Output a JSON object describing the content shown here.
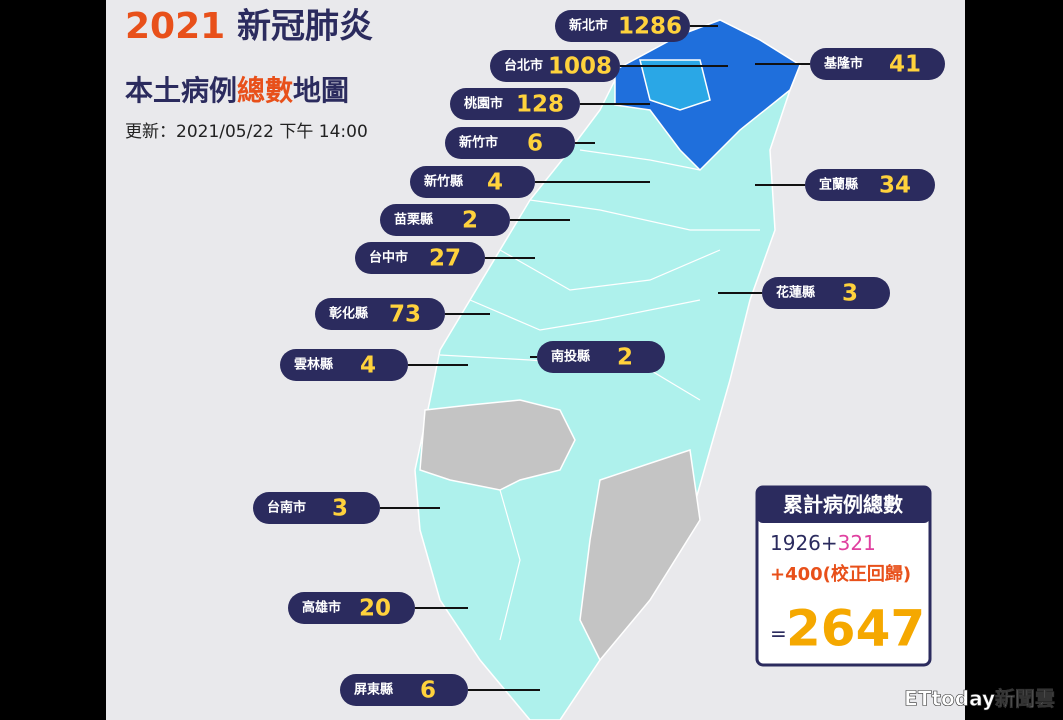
{
  "header": {
    "title_year": "2021",
    "title_rest": "新冠肺炎",
    "subtitle_a": "本土病例",
    "subtitle_b": "總數",
    "subtitle_c": "地圖",
    "updated": "更新：2021/05/22 下午 14:00"
  },
  "regions": [
    {
      "name": "新北市",
      "cases": 1286
    },
    {
      "name": "台北市",
      "cases": 1008
    },
    {
      "name": "基隆市",
      "cases": 41
    },
    {
      "name": "桃園市",
      "cases": 128
    },
    {
      "name": "新竹市",
      "cases": 6
    },
    {
      "name": "新竹縣",
      "cases": 4
    },
    {
      "name": "宜蘭縣",
      "cases": 34
    },
    {
      "name": "苗栗縣",
      "cases": 2
    },
    {
      "name": "台中市",
      "cases": 27
    },
    {
      "name": "花蓮縣",
      "cases": 3
    },
    {
      "name": "彰化縣",
      "cases": 73
    },
    {
      "name": "雲林縣",
      "cases": 4
    },
    {
      "name": "南投縣",
      "cases": 2
    },
    {
      "name": "台南市",
      "cases": 3
    },
    {
      "name": "高雄市",
      "cases": 20
    },
    {
      "name": "屏東縣",
      "cases": 6
    }
  ],
  "total": {
    "title": "累計病例總數",
    "base": "1926+",
    "added": "321",
    "corrected": "+400(校正回歸)",
    "equals": "=",
    "sum": "2647"
  },
  "watermark": "ETtoday新聞雲"
}
